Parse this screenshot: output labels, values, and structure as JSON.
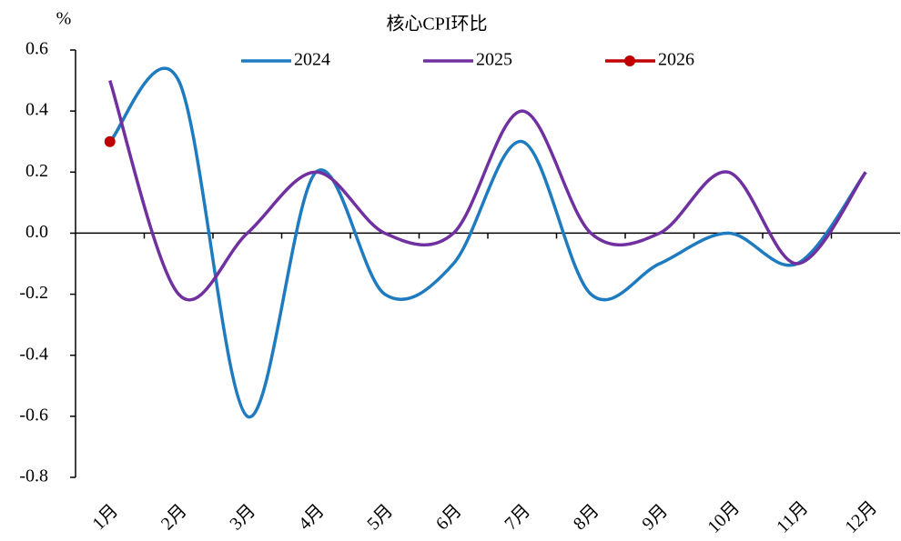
{
  "chart_data": {
    "type": "line",
    "title": "核心CPI环比",
    "y_label": "%",
    "categories": [
      "1月",
      "2月",
      "3月",
      "4月",
      "5月",
      "6月",
      "7月",
      "8月",
      "9月",
      "10月",
      "11月",
      "12月"
    ],
    "series": [
      {
        "name": "2024",
        "color": "#1f7bbf",
        "values": [
          0.3,
          0.5,
          -0.6,
          0.2,
          -0.2,
          -0.1,
          0.3,
          -0.2,
          -0.1,
          0.0,
          -0.1,
          0.2
        ]
      },
      {
        "name": "2025",
        "color": "#7030a0",
        "values": [
          0.5,
          -0.2,
          0.0,
          0.2,
          0.0,
          0.0,
          0.4,
          0.0,
          0.0,
          0.2,
          -0.1,
          0.2
        ]
      },
      {
        "name": "2026",
        "color": "#c00000",
        "marker": true,
        "values": [
          0.3,
          null,
          null,
          null,
          null,
          null,
          null,
          null,
          null,
          null,
          null,
          null
        ]
      }
    ],
    "ylim": [
      -0.8,
      0.6
    ],
    "yticks": [
      -0.8,
      -0.6,
      -0.4,
      -0.2,
      {
        "value": 0,
        "label": "0.0"
      },
      0.2,
      0.4,
      0.6
    ],
    "smooth": true
  }
}
